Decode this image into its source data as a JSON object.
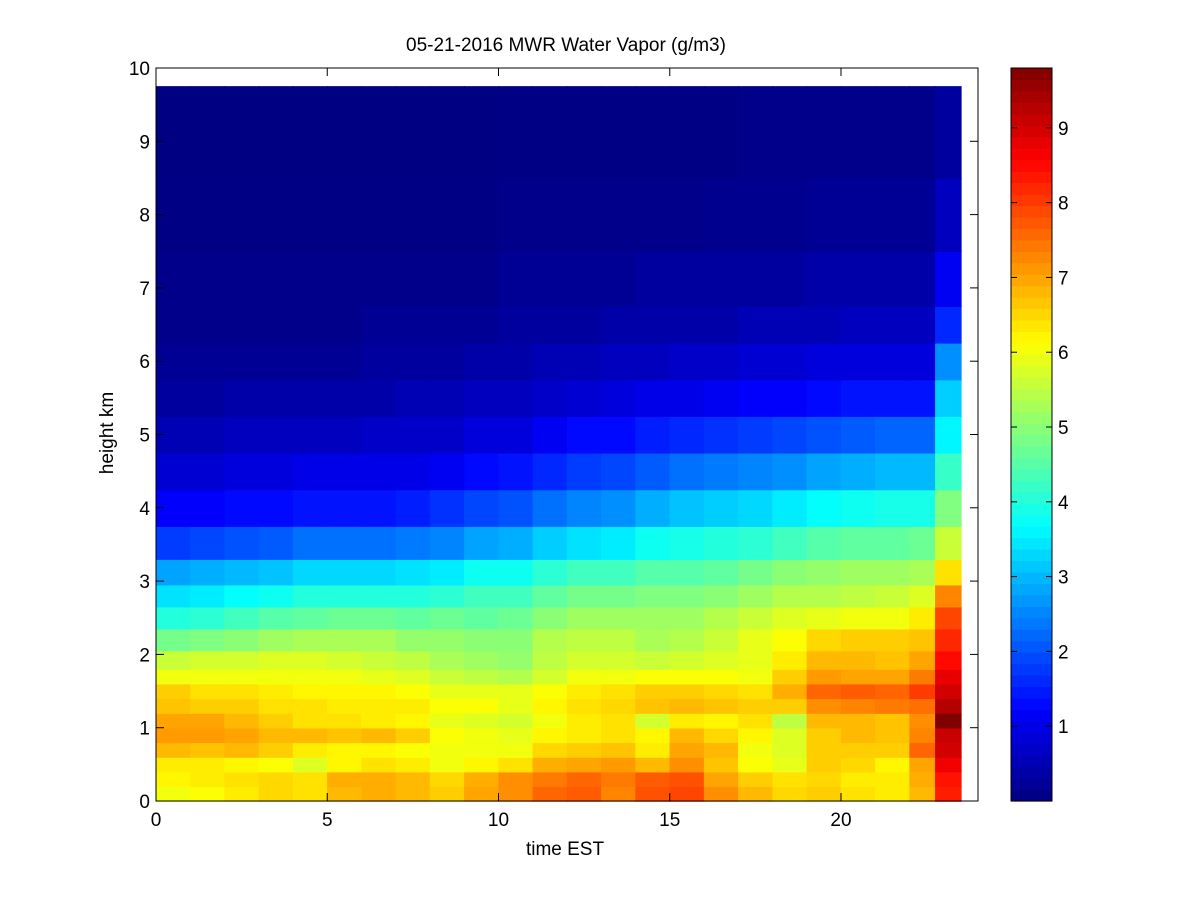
{
  "chart_data": {
    "type": "heatmap",
    "title": "05-21-2016 MWR Water Vapor (g/m3)",
    "xlabel": "time EST",
    "ylabel": "height km",
    "xlim": [
      0,
      24
    ],
    "ylim": [
      0,
      10
    ],
    "x_ticks": [
      0,
      5,
      10,
      15,
      20
    ],
    "y_ticks": [
      0,
      1,
      2,
      3,
      4,
      5,
      6,
      7,
      8,
      9,
      10
    ],
    "colormap": "jet",
    "colorbar": {
      "clim": [
        0,
        9.8
      ],
      "ticks": [
        1,
        2,
        3,
        4,
        5,
        6,
        7,
        8,
        9
      ]
    },
    "time_hours": [
      0.5,
      1.5,
      2.5,
      3.5,
      4.5,
      5.5,
      6.5,
      7.5,
      8.5,
      9.5,
      10.5,
      11.5,
      12.5,
      13.5,
      14.5,
      15.5,
      16.5,
      17.5,
      18.5,
      19.5,
      20.5,
      21.5,
      22.5,
      23.0
    ],
    "height_km": [
      0.1,
      0.3,
      0.5,
      0.7,
      0.9,
      1.1,
      1.3,
      1.5,
      1.7,
      1.9,
      2.2,
      2.5,
      2.8,
      3.1,
      3.5,
      4.0,
      4.5,
      5.0,
      5.5,
      6.0,
      6.5,
      7.0,
      8.0,
      9.0
    ],
    "values": [
      [
        6.0,
        6.1,
        6.3,
        6.5,
        6.4,
        6.8,
        6.9,
        6.8,
        6.6,
        7.0,
        7.2,
        7.6,
        7.7,
        7.3,
        7.8,
        7.9,
        7.2,
        6.8,
        6.5,
        6.6,
        6.4,
        6.3,
        6.8,
        8.3
      ],
      [
        6.2,
        6.3,
        6.4,
        6.5,
        6.4,
        6.9,
        6.9,
        6.8,
        6.5,
        6.9,
        7.2,
        7.4,
        7.6,
        7.4,
        7.7,
        7.8,
        7.0,
        6.6,
        6.4,
        6.5,
        6.3,
        6.3,
        6.9,
        8.4
      ],
      [
        6.3,
        6.3,
        6.2,
        6.1,
        5.8,
        6.2,
        6.4,
        6.3,
        6.0,
        6.2,
        6.4,
        6.9,
        7.0,
        7.1,
        6.8,
        7.2,
        6.7,
        6.1,
        5.9,
        6.6,
        6.5,
        6.2,
        7.0,
        8.7
      ],
      [
        6.8,
        6.7,
        6.8,
        6.6,
        6.3,
        6.2,
        6.2,
        6.1,
        6.0,
        6.0,
        6.0,
        6.5,
        6.6,
        6.7,
        6.3,
        7.0,
        6.8,
        6.0,
        5.8,
        6.6,
        6.6,
        6.6,
        7.6,
        9.0
      ],
      [
        7.1,
        7.1,
        7.0,
        6.8,
        6.8,
        6.7,
        6.8,
        6.6,
        6.1,
        6.0,
        5.9,
        6.2,
        6.3,
        6.4,
        6.2,
        6.8,
        6.5,
        6.2,
        5.8,
        6.6,
        6.8,
        6.7,
        7.3,
        9.1
      ],
      [
        7.0,
        7.0,
        6.8,
        6.6,
        6.4,
        6.4,
        6.3,
        6.2,
        5.9,
        5.8,
        5.7,
        6.0,
        6.3,
        6.4,
        5.7,
        6.3,
        6.2,
        6.4,
        5.5,
        6.8,
        6.8,
        6.7,
        7.2,
        9.8
      ],
      [
        6.7,
        6.6,
        6.6,
        6.4,
        6.4,
        6.3,
        6.3,
        6.3,
        6.1,
        6.1,
        5.9,
        6.2,
        6.4,
        6.5,
        6.7,
        6.8,
        6.7,
        6.6,
        6.6,
        7.2,
        7.3,
        7.4,
        7.5,
        9.3
      ],
      [
        6.6,
        6.4,
        6.4,
        6.3,
        6.2,
        6.2,
        6.2,
        6.1,
        5.9,
        5.9,
        5.9,
        6.1,
        6.3,
        6.4,
        6.6,
        6.6,
        6.5,
        6.4,
        6.9,
        7.6,
        7.7,
        7.6,
        8.0,
        9.0
      ],
      [
        6.0,
        6.0,
        6.0,
        6.0,
        6.0,
        6.0,
        5.9,
        5.8,
        5.6,
        5.5,
        5.4,
        5.7,
        6.0,
        6.0,
        6.1,
        6.1,
        6.1,
        6.0,
        6.6,
        7.1,
        7.0,
        7.0,
        7.4,
        8.8
      ],
      [
        5.6,
        5.7,
        5.7,
        5.8,
        5.8,
        5.7,
        5.6,
        5.5,
        5.3,
        5.2,
        5.1,
        5.5,
        5.7,
        5.7,
        5.6,
        5.7,
        5.8,
        5.9,
        6.3,
        6.8,
        6.8,
        6.7,
        7.0,
        8.5
      ],
      [
        4.8,
        4.9,
        5.0,
        5.2,
        5.3,
        5.3,
        5.3,
        5.1,
        5.1,
        5.0,
        5.0,
        5.4,
        5.5,
        5.5,
        5.3,
        5.4,
        5.6,
        5.9,
        6.1,
        6.5,
        6.6,
        6.6,
        6.7,
        8.2
      ],
      [
        4.0,
        4.1,
        4.3,
        4.5,
        4.6,
        4.7,
        4.7,
        4.6,
        4.7,
        4.6,
        4.7,
        5.0,
        5.2,
        5.2,
        5.2,
        5.2,
        5.4,
        5.6,
        5.8,
        5.9,
        6.0,
        6.0,
        6.3,
        7.9
      ],
      [
        3.4,
        3.5,
        3.7,
        3.8,
        4.0,
        4.0,
        4.0,
        4.0,
        4.1,
        4.3,
        4.3,
        4.6,
        4.8,
        4.8,
        4.9,
        4.9,
        5.0,
        5.2,
        5.4,
        5.4,
        5.5,
        5.6,
        5.8,
        7.3
      ],
      [
        2.8,
        2.9,
        3.0,
        3.1,
        3.3,
        3.3,
        3.3,
        3.4,
        3.5,
        3.8,
        3.8,
        4.1,
        4.3,
        4.3,
        4.5,
        4.5,
        4.6,
        4.8,
        5.0,
        5.1,
        5.2,
        5.2,
        5.3,
        6.4
      ],
      [
        1.8,
        1.9,
        2.0,
        2.1,
        2.3,
        2.3,
        2.3,
        2.4,
        2.5,
        2.8,
        2.9,
        3.2,
        3.4,
        3.5,
        3.8,
        3.9,
        4.0,
        4.1,
        4.3,
        4.5,
        4.6,
        4.6,
        4.7,
        5.6
      ],
      [
        1.2,
        1.2,
        1.3,
        1.3,
        1.4,
        1.4,
        1.4,
        1.5,
        1.7,
        1.9,
        2.0,
        2.3,
        2.5,
        2.6,
        2.9,
        3.1,
        3.2,
        3.3,
        3.5,
        3.7,
        3.8,
        3.9,
        3.9,
        4.9
      ],
      [
        0.8,
        0.8,
        0.9,
        0.9,
        1.0,
        1.0,
        1.0,
        1.0,
        1.1,
        1.3,
        1.4,
        1.6,
        1.8,
        1.9,
        2.1,
        2.3,
        2.4,
        2.5,
        2.6,
        2.8,
        2.9,
        3.0,
        3.0,
        4.2
      ],
      [
        0.5,
        0.5,
        0.6,
        0.6,
        0.6,
        0.6,
        0.7,
        0.7,
        0.7,
        0.9,
        0.9,
        1.1,
        1.3,
        1.3,
        1.5,
        1.6,
        1.7,
        1.8,
        1.9,
        2.0,
        2.1,
        2.2,
        2.2,
        3.6
      ],
      [
        0.3,
        0.3,
        0.4,
        0.4,
        0.4,
        0.4,
        0.4,
        0.5,
        0.5,
        0.6,
        0.6,
        0.7,
        0.8,
        0.9,
        1.0,
        1.0,
        1.1,
        1.2,
        1.2,
        1.3,
        1.4,
        1.4,
        1.4,
        3.2
      ],
      [
        0.2,
        0.2,
        0.2,
        0.2,
        0.2,
        0.2,
        0.3,
        0.3,
        0.3,
        0.4,
        0.4,
        0.5,
        0.5,
        0.6,
        0.6,
        0.7,
        0.7,
        0.8,
        0.8,
        0.9,
        0.9,
        0.9,
        0.9,
        2.6
      ],
      [
        0.1,
        0.1,
        0.1,
        0.1,
        0.1,
        0.1,
        0.2,
        0.2,
        0.2,
        0.2,
        0.3,
        0.3,
        0.3,
        0.4,
        0.4,
        0.4,
        0.4,
        0.5,
        0.5,
        0.5,
        0.6,
        0.6,
        0.6,
        1.6
      ],
      [
        0.1,
        0.1,
        0.1,
        0.1,
        0.1,
        0.1,
        0.1,
        0.1,
        0.1,
        0.1,
        0.2,
        0.2,
        0.2,
        0.2,
        0.3,
        0.3,
        0.3,
        0.3,
        0.3,
        0.4,
        0.4,
        0.4,
        0.4,
        1.1
      ],
      [
        0.05,
        0.05,
        0.05,
        0.05,
        0.05,
        0.05,
        0.05,
        0.05,
        0.05,
        0.05,
        0.1,
        0.1,
        0.1,
        0.1,
        0.1,
        0.1,
        0.15,
        0.15,
        0.15,
        0.2,
        0.2,
        0.2,
        0.2,
        0.6
      ],
      [
        0.02,
        0.02,
        0.02,
        0.02,
        0.02,
        0.02,
        0.02,
        0.02,
        0.02,
        0.02,
        0.05,
        0.05,
        0.05,
        0.05,
        0.05,
        0.05,
        0.05,
        0.1,
        0.1,
        0.1,
        0.1,
        0.1,
        0.1,
        0.3
      ]
    ]
  }
}
